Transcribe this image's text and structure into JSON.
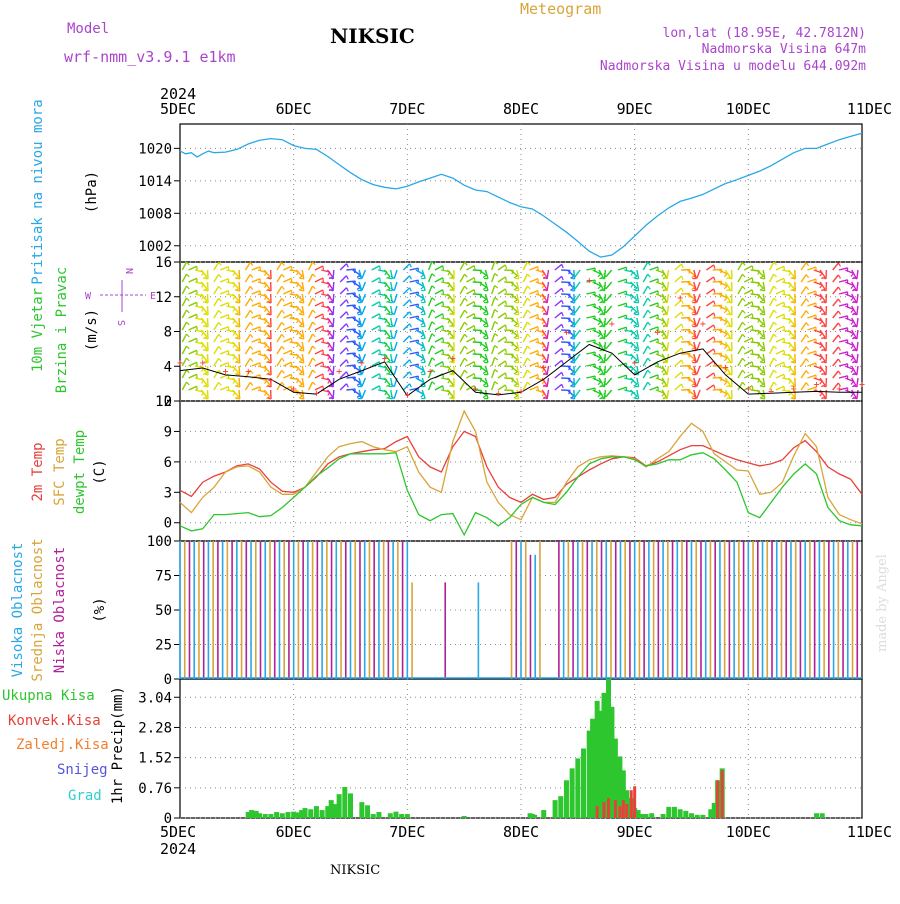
{
  "header": {
    "model_label": "Model",
    "model_value": "wrf-nmm_v3.9.1  e1km",
    "station": "NIKSIC",
    "title": "Meteogram",
    "lonlat": "lon,lat (18.95E, 42.7812N)",
    "elevation": "Nadmorska Visina 647m",
    "model_elevation": "Nadmorska Visina u modelu 644.092m"
  },
  "footer": {
    "station": "NIKSIC",
    "credit": "made by Angel"
  },
  "axis": {
    "year": "2024",
    "day_labels": [
      "5DEC",
      "6DEC",
      "7DEC",
      "8DEC",
      "9DEC",
      "10DEC",
      "11DEC"
    ]
  },
  "colors": {
    "pressure": "#2aa7e8",
    "temp2m": "#e8403a",
    "sfc": "#d9a43a",
    "dewpt": "#2ec62e",
    "high_cloud": "#2aa7e8",
    "mid_cloud": "#d9a43a",
    "low_cloud": "#b0209a",
    "precip_total": "#2ec62e",
    "precip_conv": "#e8403a",
    "precip_froz": "#f08030",
    "snow": "#5555dd",
    "grad": "#33cccc",
    "purple": "#aa44cc"
  },
  "chart_data": [
    {
      "type": "line",
      "panel": "pressure",
      "ylabel_main": "Pritisak na nivou mora",
      "ylabel_unit": "(hPa)",
      "yticks": [
        "1020",
        "1014",
        "1008",
        "1002"
      ],
      "ylim": [
        999,
        1024.5
      ],
      "x_unit": "days since 5DEC 00UTC",
      "series": [
        {
          "x": [
            0,
            0.05,
            0.1,
            0.15,
            0.2,
            0.25,
            0.3,
            0.4,
            0.5,
            0.6,
            0.7,
            0.8,
            0.9,
            1.0,
            1.1,
            1.2,
            1.3,
            1.4,
            1.5,
            1.6,
            1.7,
            1.8,
            1.9,
            2.0,
            2.1,
            2.2,
            2.3,
            2.4,
            2.5,
            2.6,
            2.7,
            2.8,
            2.9,
            3.0,
            3.1,
            3.2,
            3.3,
            3.4,
            3.5,
            3.6,
            3.7,
            3.8,
            3.9,
            4.0,
            4.1,
            4.2,
            4.3,
            4.4,
            4.5,
            4.6,
            4.7,
            4.8,
            4.9,
            5.0,
            5.1,
            5.2,
            5.3,
            5.4,
            5.5,
            5.6,
            5.7,
            5.8,
            5.9,
            6.0
          ],
          "values": [
            1019.5,
            1019.0,
            1019.2,
            1018.4,
            1019.0,
            1019.5,
            1019.2,
            1019.3,
            1019.8,
            1020.8,
            1021.5,
            1021.8,
            1021.6,
            1020.5,
            1020.0,
            1019.8,
            1018.5,
            1017.0,
            1015.5,
            1014.2,
            1013.3,
            1012.8,
            1012.5,
            1013.0,
            1013.8,
            1014.5,
            1015.2,
            1014.5,
            1013.2,
            1012.3,
            1012.0,
            1011.0,
            1010.0,
            1009.2,
            1008.8,
            1007.5,
            1006.0,
            1004.5,
            1002.8,
            1001.0,
            999.9,
            1000.3,
            1001.8,
            1003.8,
            1005.8,
            1007.5,
            1009.0,
            1010.2,
            1010.8,
            1011.5,
            1012.5,
            1013.5,
            1014.2,
            1015.0,
            1015.8,
            1016.8,
            1018.0,
            1019.2,
            1020.0,
            1020.0,
            1020.8,
            1021.6,
            1022.2,
            1022.8
          ]
        }
      ]
    },
    {
      "type": "line",
      "panel": "wind",
      "ylabel_main": "10m Vjetar",
      "ylabel_sub": "Brzina i Pravac",
      "ylabel_unit": "(m/s)",
      "compass": {
        "n": "N",
        "e": "E",
        "w": "W",
        "s": "S"
      },
      "yticks": [
        "16",
        "12",
        "8",
        "4",
        "0"
      ],
      "ylim": [
        0,
        16
      ],
      "x_unit": "days since 5DEC 00UTC",
      "series": [
        {
          "name": "speed",
          "x": [
            0,
            0.2,
            0.4,
            0.6,
            0.8,
            1.0,
            1.2,
            1.4,
            1.6,
            1.8,
            2.0,
            2.2,
            2.4,
            2.6,
            2.8,
            3.0,
            3.2,
            3.4,
            3.6,
            3.8,
            4.0,
            4.2,
            4.4,
            4.6,
            4.8,
            5.0,
            5.2,
            5.4,
            5.6,
            5.8,
            6.0
          ],
          "values": [
            3.5,
            3.8,
            3.0,
            2.8,
            2.5,
            1.0,
            0.8,
            2.5,
            3.5,
            4.5,
            0.6,
            2.5,
            3.5,
            1.0,
            0.7,
            1.0,
            2.5,
            4.5,
            6.5,
            5.5,
            3.0,
            4.5,
            5.5,
            6.0,
            3.0,
            0.8,
            0.9,
            1.0,
            1.1,
            1.0,
            1.0
          ]
        },
        {
          "name": "gust",
          "x": [
            0,
            0.2,
            0.4,
            0.6,
            0.8,
            1.0,
            1.2,
            1.4,
            1.6,
            1.8,
            2.0,
            2.2,
            2.4,
            2.6,
            2.8,
            3.0,
            3.2,
            3.4,
            3.6,
            3.8,
            4.0,
            4.2,
            4.4,
            4.6,
            4.8,
            5.0,
            5.2,
            5.4,
            5.6,
            5.8,
            6.0
          ],
          "values": [
            4.5,
            4.5,
            3.5,
            3.5,
            2.5,
            1.5,
            1.0,
            3.5,
            4.5,
            5.0,
            0.8,
            3.5,
            5.0,
            1.5,
            1.0,
            1.2,
            4.0,
            8.0,
            14.0,
            9.0,
            4.5,
            8.0,
            12.0,
            9.0,
            4.0,
            1.5,
            1.2,
            1.5,
            2.0,
            1.5,
            2.0
          ]
        }
      ]
    },
    {
      "type": "line",
      "panel": "temperature",
      "ylabel_series": [
        "2m Temp",
        "SFC Temp",
        "dewpt Temp"
      ],
      "ylabel_unit": "(C)",
      "yticks": [
        "12",
        "9",
        "6",
        "3",
        "0"
      ],
      "ylim": [
        -1.8,
        12
      ],
      "x_unit": "days since 5DEC 00UTC",
      "series": [
        {
          "name": "2m Temp",
          "x": [
            0,
            0.1,
            0.2,
            0.3,
            0.4,
            0.5,
            0.6,
            0.7,
            0.8,
            0.9,
            1.0,
            1.1,
            1.2,
            1.3,
            1.4,
            1.5,
            1.6,
            1.7,
            1.8,
            1.9,
            2.0,
            2.1,
            2.2,
            2.3,
            2.4,
            2.5,
            2.6,
            2.7,
            2.8,
            2.9,
            3.0,
            3.1,
            3.2,
            3.3,
            3.4,
            3.5,
            3.6,
            3.7,
            3.8,
            3.9,
            4.0,
            4.1,
            4.2,
            4.3,
            4.4,
            4.5,
            4.6,
            4.7,
            4.8,
            4.9,
            5.0,
            5.1,
            5.2,
            5.3,
            5.4,
            5.5,
            5.6,
            5.7,
            5.8,
            5.9,
            6.0
          ],
          "values": [
            3.2,
            2.6,
            4.0,
            4.6,
            5.0,
            5.6,
            5.8,
            5.3,
            4.0,
            3.1,
            3.0,
            3.5,
            4.5,
            5.8,
            6.5,
            6.8,
            7.0,
            7.2,
            7.3,
            8.0,
            8.5,
            6.5,
            5.5,
            5.0,
            7.5,
            9.0,
            8.5,
            5.5,
            3.5,
            2.5,
            2.0,
            2.8,
            2.3,
            2.5,
            3.8,
            4.5,
            5.2,
            5.8,
            6.3,
            6.5,
            6.4,
            5.6,
            6.0,
            6.6,
            7.2,
            7.6,
            7.6,
            7.1,
            6.6,
            6.2,
            5.9,
            5.6,
            5.8,
            6.2,
            7.4,
            8.1,
            7.0,
            5.5,
            4.8,
            4.3,
            2.8
          ]
        },
        {
          "name": "SFC Temp",
          "x": [
            0,
            0.1,
            0.2,
            0.3,
            0.4,
            0.5,
            0.6,
            0.7,
            0.8,
            0.9,
            1.0,
            1.1,
            1.2,
            1.3,
            1.4,
            1.5,
            1.6,
            1.7,
            1.8,
            1.9,
            2.0,
            2.1,
            2.2,
            2.3,
            2.4,
            2.5,
            2.6,
            2.7,
            2.8,
            2.9,
            3.0,
            3.1,
            3.2,
            3.3,
            3.4,
            3.5,
            3.6,
            3.7,
            3.8,
            3.9,
            4.0,
            4.1,
            4.2,
            4.3,
            4.4,
            4.5,
            4.6,
            4.7,
            4.8,
            4.9,
            5.0,
            5.1,
            5.2,
            5.3,
            5.4,
            5.5,
            5.6,
            5.7,
            5.8,
            5.9,
            6.0
          ],
          "values": [
            2.0,
            1.0,
            2.5,
            3.5,
            5.0,
            5.5,
            5.6,
            5.0,
            3.5,
            2.8,
            2.8,
            3.5,
            5.0,
            6.5,
            7.5,
            7.8,
            8.0,
            7.5,
            7.2,
            7.0,
            7.5,
            5.0,
            3.5,
            3.0,
            8.0,
            11.0,
            9.0,
            4.0,
            2.0,
            0.8,
            0.3,
            2.5,
            2.0,
            2.0,
            4.0,
            5.5,
            6.2,
            6.5,
            6.6,
            6.5,
            6.3,
            5.5,
            6.3,
            7.0,
            8.5,
            9.8,
            9.0,
            6.8,
            6.0,
            5.2,
            5.1,
            2.8,
            3.0,
            4.0,
            6.6,
            8.8,
            7.5,
            2.5,
            0.8,
            0.3,
            -0.1
          ]
        },
        {
          "name": "dewpt Temp",
          "x": [
            0,
            0.1,
            0.2,
            0.3,
            0.4,
            0.5,
            0.6,
            0.7,
            0.8,
            0.9,
            1.0,
            1.1,
            1.2,
            1.3,
            1.4,
            1.5,
            1.6,
            1.7,
            1.8,
            1.9,
            2.0,
            2.1,
            2.2,
            2.3,
            2.4,
            2.5,
            2.6,
            2.7,
            2.8,
            2.9,
            3.0,
            3.1,
            3.2,
            3.3,
            3.4,
            3.5,
            3.6,
            3.7,
            3.8,
            3.9,
            4.0,
            4.1,
            4.2,
            4.3,
            4.4,
            4.5,
            4.6,
            4.7,
            4.8,
            4.9,
            5.0,
            5.1,
            5.2,
            5.3,
            5.4,
            5.5,
            5.6,
            5.7,
            5.8,
            5.9,
            6.0
          ],
          "values": [
            -0.3,
            -0.8,
            -0.6,
            0.8,
            0.8,
            0.9,
            1.0,
            0.6,
            0.7,
            1.5,
            2.5,
            3.5,
            4.6,
            5.4,
            6.3,
            6.8,
            6.8,
            6.8,
            6.8,
            6.9,
            3.2,
            0.8,
            0.2,
            0.8,
            0.9,
            -1.2,
            1.0,
            0.5,
            -0.3,
            0.5,
            1.8,
            2.5,
            2.0,
            1.8,
            3.0,
            4.5,
            5.8,
            6.3,
            6.5,
            6.5,
            6.2,
            5.6,
            5.8,
            6.2,
            6.2,
            6.7,
            6.9,
            6.3,
            5.2,
            4.0,
            1.0,
            0.5,
            2.0,
            3.5,
            4.8,
            5.8,
            4.8,
            1.5,
            0.2,
            -0.2,
            -0.3
          ]
        }
      ]
    },
    {
      "type": "bar",
      "panel": "cloud",
      "ylabel_series": [
        "Visoka Oblacnost",
        "Srednja Oblacnost",
        "Niska Oblacnost"
      ],
      "ylabel_unit": "(%)",
      "yticks": [
        "100",
        "75",
        "50",
        "25",
        "0"
      ],
      "ylim": [
        0,
        100
      ],
      "x_unit": "days since 5DEC 00UTC"
    },
    {
      "type": "bar",
      "panel": "precip",
      "legend": [
        "Ukupna Kisa",
        "Konvek.Kisa",
        "Zaledj.Kisa",
        "Snijeg",
        "Grad"
      ],
      "ylabel_main": "1hr Precip",
      "ylabel_unit": "(mm)",
      "yticks": [
        "3.04",
        "2.28",
        "1.52",
        "0.76",
        "0"
      ],
      "ylim": [
        0,
        3.5
      ],
      "x_unit": "days since 5DEC 00UTC",
      "series": [
        {
          "name": "Ukupna Kisa",
          "x": [
            0.6,
            0.63,
            0.67,
            0.7,
            0.75,
            0.8,
            0.85,
            0.9,
            0.95,
            1.0,
            1.03,
            1.07,
            1.1,
            1.15,
            1.2,
            1.25,
            1.3,
            1.33,
            1.37,
            1.4,
            1.45,
            1.5,
            1.6,
            1.65,
            1.7,
            1.75,
            1.85,
            1.9,
            1.95,
            2.0,
            2.5,
            3.08,
            3.1,
            3.12,
            3.2,
            3.3,
            3.35,
            3.4,
            3.45,
            3.5,
            3.55,
            3.6,
            3.63,
            3.67,
            3.7,
            3.73,
            3.77,
            3.8,
            3.83,
            3.87,
            3.9,
            3.93,
            3.97,
            4.0,
            4.03,
            4.07,
            4.1,
            4.15,
            4.25,
            4.3,
            4.35,
            4.4,
            4.45,
            4.5,
            4.55,
            4.6,
            4.67,
            4.7,
            4.73,
            4.77,
            5.6,
            5.65
          ],
          "values": [
            0.15,
            0.2,
            0.18,
            0.12,
            0.1,
            0.1,
            0.15,
            0.12,
            0.15,
            0.16,
            0.14,
            0.2,
            0.25,
            0.22,
            0.3,
            0.2,
            0.3,
            0.45,
            0.35,
            0.6,
            0.78,
            0.62,
            0.4,
            0.32,
            0.1,
            0.15,
            0.12,
            0.16,
            0.1,
            0.1,
            0.05,
            0.12,
            0.1,
            0.08,
            0.2,
            0.45,
            0.55,
            0.95,
            1.25,
            1.5,
            1.75,
            2.2,
            2.5,
            2.95,
            2.7,
            3.15,
            3.5,
            2.8,
            2.0,
            1.55,
            1.2,
            0.7,
            0.5,
            0.25,
            0.2,
            0.1,
            0.1,
            0.12,
            0.1,
            0.28,
            0.28,
            0.22,
            0.18,
            0.12,
            0.08,
            0.08,
            0.22,
            0.38,
            0.95,
            1.25,
            0.12,
            0.12
          ]
        },
        {
          "name": "Konvek.Kisa",
          "x": [
            3.67,
            3.73,
            3.77,
            3.83,
            3.87,
            3.9,
            3.93,
            3.97,
            4.0,
            4.73,
            4.77
          ],
          "values": [
            0.3,
            0.4,
            0.5,
            0.45,
            0.3,
            0.45,
            0.35,
            0.7,
            0.8,
            0.95,
            1.2
          ]
        }
      ]
    }
  ]
}
